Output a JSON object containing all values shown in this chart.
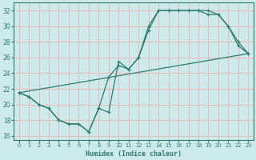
{
  "xlabel": "Humidex (Indice chaleur)",
  "xlim": [
    -0.5,
    23.5
  ],
  "ylim": [
    15.5,
    33
  ],
  "xticks": [
    0,
    1,
    2,
    3,
    4,
    5,
    6,
    7,
    8,
    9,
    10,
    11,
    12,
    13,
    14,
    15,
    16,
    17,
    18,
    19,
    20,
    21,
    22,
    23
  ],
  "yticks": [
    16,
    18,
    20,
    22,
    24,
    26,
    28,
    30,
    32
  ],
  "bg_color": "#cdeaea",
  "line_color": "#2e7b6e",
  "grid_color": "#e8b8b8",
  "line1_x": [
    0,
    1,
    2,
    3,
    4,
    5,
    6,
    7,
    8,
    9,
    10,
    11,
    12,
    13,
    14,
    15,
    16,
    17,
    18,
    19,
    20,
    21,
    22,
    23
  ],
  "line1_y": [
    21.5,
    21.0,
    20.0,
    19.5,
    18.0,
    17.5,
    17.5,
    16.5,
    19.5,
    23.5,
    25.0,
    24.5,
    26.0,
    29.5,
    32.0,
    32.0,
    32.0,
    32.0,
    32.0,
    32.0,
    31.5,
    30.0,
    28.0,
    26.5
  ],
  "line2_x": [
    0,
    1,
    2,
    3,
    4,
    5,
    6,
    7,
    8,
    9,
    10,
    11,
    12,
    13,
    14,
    15,
    16,
    17,
    18,
    19,
    20,
    21,
    22,
    23
  ],
  "line2_y": [
    21.5,
    21.0,
    20.0,
    19.5,
    18.0,
    17.5,
    17.5,
    16.5,
    19.5,
    19.0,
    25.5,
    24.5,
    26.0,
    30.0,
    32.0,
    32.0,
    32.0,
    32.0,
    32.0,
    31.5,
    31.5,
    30.0,
    27.5,
    26.5
  ],
  "line3_x": [
    0,
    23
  ],
  "line3_y": [
    21.5,
    26.5
  ]
}
